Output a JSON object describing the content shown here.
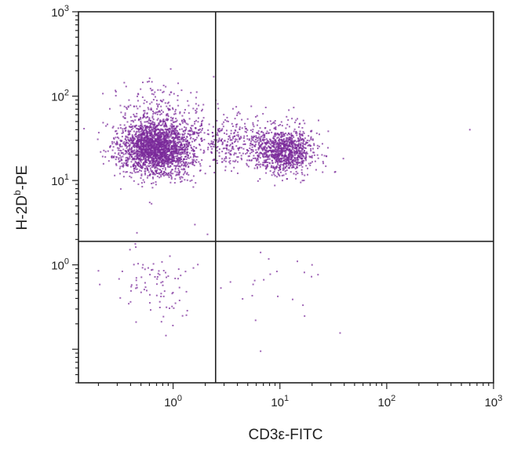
{
  "chart_data": {
    "type": "scatter",
    "title": "",
    "xlabel": "CD3ε-FITC",
    "ylabel_parts": {
      "main": "H-2D",
      "sup": "b",
      "suffix": "-PE"
    },
    "x_scale": "log",
    "y_scale": "log",
    "xlim": [
      0.13,
      1000
    ],
    "ylim": [
      0.04,
      1000
    ],
    "x_ticks": [
      {
        "value": 1,
        "base": "10",
        "exp": "0"
      },
      {
        "value": 10,
        "base": "10",
        "exp": "1"
      },
      {
        "value": 100,
        "base": "10",
        "exp": "2"
      },
      {
        "value": 1000,
        "base": "10",
        "exp": "3"
      }
    ],
    "y_ticks": [
      {
        "value": 1,
        "base": "10",
        "exp": "0"
      },
      {
        "value": 10,
        "base": "10",
        "exp": "1"
      },
      {
        "value": 100,
        "base": "10",
        "exp": "2"
      },
      {
        "value": 1000,
        "base": "10",
        "exp": "3"
      }
    ],
    "quadrant_gates": {
      "x": 2.5,
      "y": 1.9
    },
    "point_color": "#7a2a9a",
    "populations": [
      {
        "center": [
          0.7,
          24
        ],
        "spread_log10": [
          0.17,
          0.16
        ],
        "count": 2300
      },
      {
        "center": [
          11,
          22
        ],
        "spread_log10": [
          0.14,
          0.13
        ],
        "count": 1000
      },
      {
        "center": [
          4,
          30
        ],
        "spread_log10": [
          0.22,
          0.16
        ],
        "count": 350
      },
      {
        "center": [
          0.8,
          60
        ],
        "spread_log10": [
          0.22,
          0.18
        ],
        "count": 260
      },
      {
        "center": [
          0.7,
          0.55
        ],
        "spread_log10": [
          0.17,
          0.26
        ],
        "count": 85
      },
      {
        "center": [
          8,
          0.5
        ],
        "spread_log10": [
          0.3,
          0.3
        ],
        "count": 22
      }
    ],
    "outliers": [
      [
        600,
        40
      ],
      [
        0.95,
        210
      ],
      [
        2.4,
        170
      ],
      [
        0.2,
        0.85
      ],
      [
        1.6,
        3.0
      ],
      [
        2.1,
        2.3
      ],
      [
        20,
        1.0
      ]
    ],
    "grid": false,
    "legend": "none"
  }
}
